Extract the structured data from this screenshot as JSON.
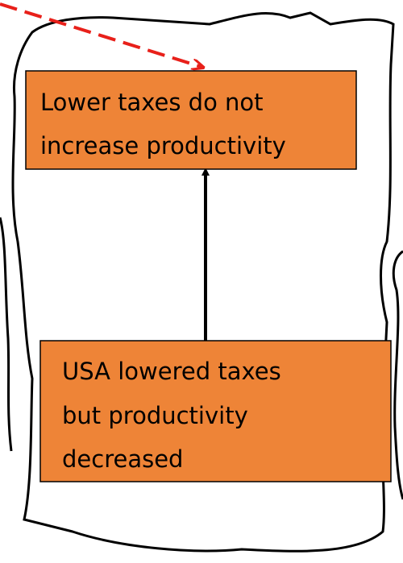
{
  "nodes": [
    {
      "lines": [
        "Lower taxes do not",
        "increase productivity"
      ]
    },
    {
      "lines": [
        "USA lowered taxes",
        "but productivity",
        "decreased"
      ]
    }
  ]
}
